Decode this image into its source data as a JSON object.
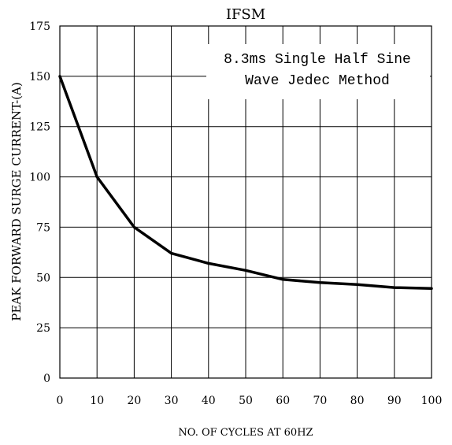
{
  "chart_data": {
    "type": "line",
    "title": "IFSM",
    "xlabel": "NO. OF CYCLES AT 60HZ",
    "ylabel": "PEAK FORWARD SURGE CURRENT-(A)",
    "annotation": [
      "8.3ms Single Half Sine",
      "Wave Jedec Method"
    ],
    "xlim": [
      0,
      100
    ],
    "ylim": [
      0,
      175
    ],
    "xticks": [
      0,
      10,
      20,
      30,
      40,
      50,
      60,
      70,
      80,
      90,
      100
    ],
    "yticks": [
      0,
      25,
      50,
      75,
      100,
      125,
      150,
      175
    ],
    "grid": true,
    "series": [
      {
        "x": [
          0,
          10,
          20,
          30,
          40,
          50,
          60,
          70,
          80,
          90,
          100
        ],
        "y": [
          150,
          100,
          75,
          62,
          57,
          53.5,
          49,
          47.5,
          46.5,
          45,
          44.5
        ]
      }
    ],
    "colors": {
      "line": "#000000",
      "grid": "#000000",
      "background": "#ffffff"
    }
  }
}
